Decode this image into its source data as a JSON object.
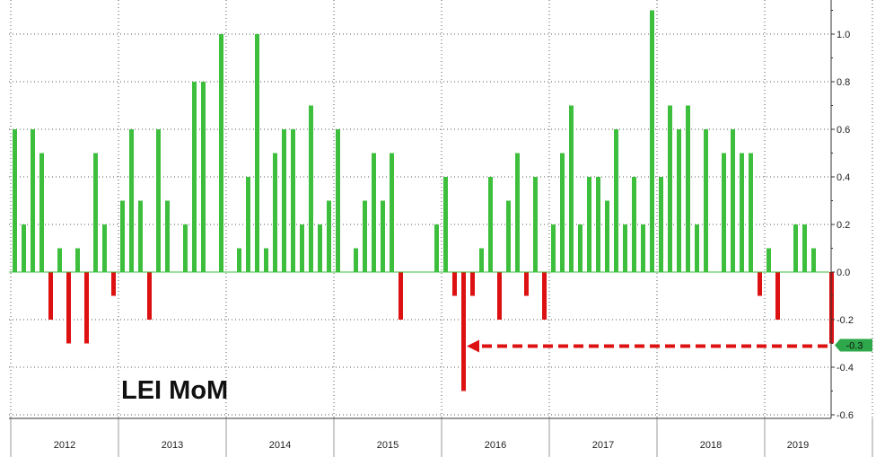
{
  "chart_data": {
    "type": "bar",
    "title": "LEI MoM",
    "x_labels": [
      "2012",
      "2013",
      "2014",
      "2015",
      "2016",
      "2017",
      "2018",
      "2019"
    ],
    "y_ticks": [
      1.0,
      0.8,
      0.6,
      0.4,
      0.2,
      0.0,
      -0.2,
      -0.4,
      -0.6
    ],
    "y_tick_labels": [
      "1.0",
      "0.8",
      "0.6",
      "0.4",
      "0.2",
      "0.0",
      "-0.2",
      "-0.4",
      "-0.6"
    ],
    "ylim": [
      -0.62,
      1.12
    ],
    "grid": true,
    "positive_color": "#3dbf3d",
    "negative_color": "#dd1111",
    "values": [
      0.6,
      0.2,
      0.6,
      0.5,
      -0.2,
      0.1,
      -0.3,
      0.1,
      -0.3,
      0.5,
      0.2,
      -0.1,
      0.3,
      0.6,
      0.3,
      -0.2,
      0.6,
      0.3,
      0.0,
      0.2,
      0.8,
      0.8,
      0.0,
      1.0,
      0.0,
      0.1,
      0.4,
      1.0,
      0.1,
      0.5,
      0.6,
      0.6,
      0.2,
      0.7,
      0.2,
      0.3,
      0.6,
      0.0,
      0.1,
      0.3,
      0.5,
      0.3,
      0.5,
      -0.2,
      0.0,
      0.0,
      0.0,
      0.2,
      0.4,
      -0.1,
      -0.5,
      -0.1,
      0.1,
      0.4,
      -0.2,
      0.3,
      0.5,
      -0.1,
      0.4,
      -0.2,
      0.2,
      0.5,
      0.7,
      0.2,
      0.4,
      0.4,
      0.3,
      0.6,
      0.2,
      0.4,
      0.2,
      1.1,
      0.4,
      0.7,
      0.6,
      0.7,
      0.2,
      0.6,
      0.0,
      0.5,
      0.6,
      0.5,
      0.5,
      -0.1,
      0.1,
      -0.2,
      0.0,
      0.2,
      0.2,
      0.1,
      0.0,
      -0.3
    ],
    "last_value_label": "-0.3",
    "badge_color": "#2ea84a",
    "annotation": {
      "type": "dashed-arrow",
      "from_index": 91,
      "to_index": 50,
      "value": -0.3,
      "color": "#dd1111"
    }
  }
}
